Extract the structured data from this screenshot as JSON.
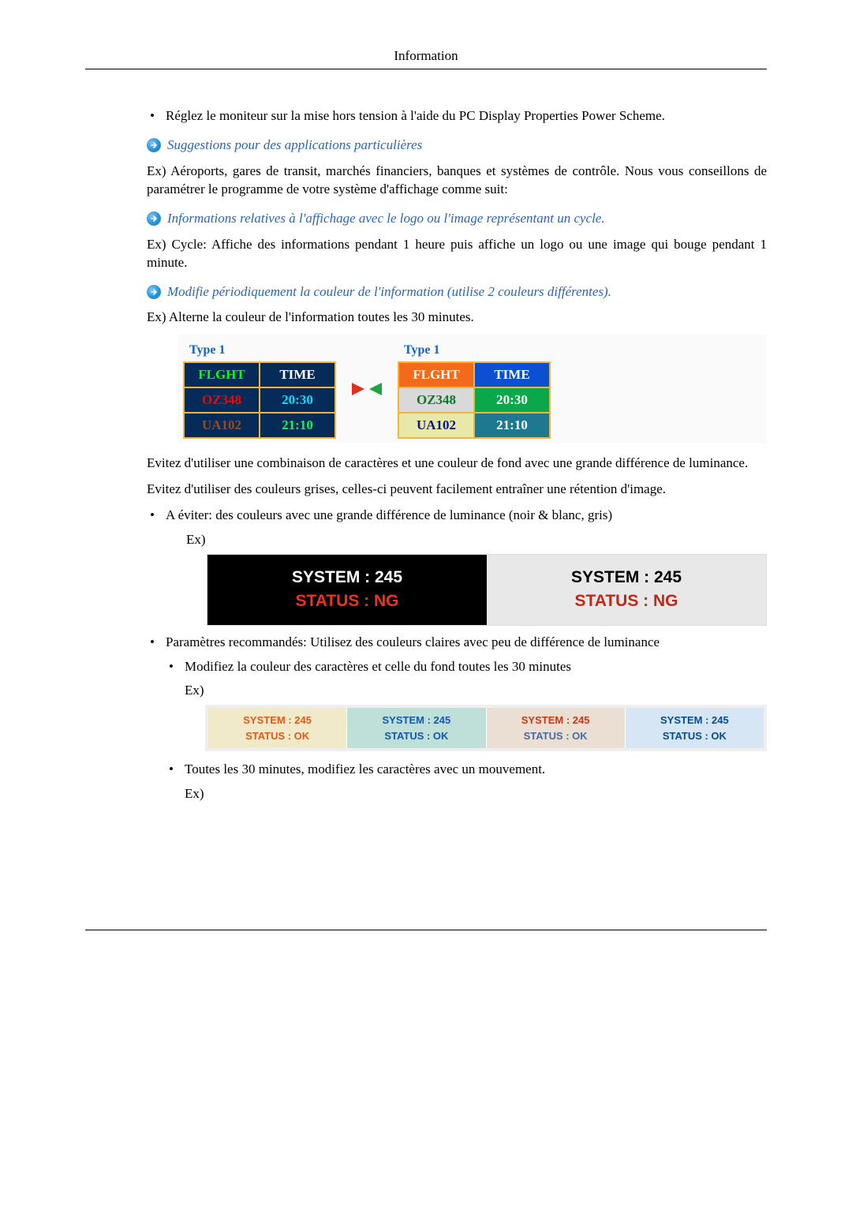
{
  "header": {
    "title": "Information"
  },
  "bullets": {
    "top": "Réglez le moniteur sur la mise hors tension à l'aide du PC Display Properties Power Scheme.",
    "avoid": "A éviter: des couleurs avec une grande différence de luminance (noir & blanc, gris)",
    "recommend": "Paramètres recommandés: Utilisez des couleurs claires avec peu de différence de luminance",
    "sub_changecolor": "Modifiez la couleur des caractères et celle du fond toutes les 30 minutes",
    "sub_move": "Toutes les 30 minutes, modifiez les caractères avec un mouvement."
  },
  "callouts": {
    "c1": "Suggestions pour des applications particulières",
    "c2": "Informations relatives à l'affichage avec le logo ou l'image représentant un cycle.",
    "c3": "Modifie périodiquement la couleur de l'information (utilise 2 couleurs différentes)."
  },
  "paras": {
    "p1": "Ex) Aéroports, gares de transit, marchés financiers, banques et systèmes de contrôle. Nous vous conseillons de paramétrer le programme de votre système d'affichage comme suit:",
    "p2": "Ex) Cycle: Affiche des informations pendant 1 heure puis affiche un logo ou une image qui bouge pendant 1 minute.",
    "p3": "Ex) Alterne la couleur de l'information toutes les 30 minutes.",
    "p4": "Evitez d'utiliser une combinaison de caractères et une couleur de fond avec une grande différence de luminance.",
    "p5": "Evitez d'utiliser des couleurs grises, celles-ci peuvent facilement entraîner une rétention d'image."
  },
  "ex_label": "Ex)",
  "figA": {
    "caption": "Type 1",
    "h1": "FLGHT",
    "h2": "TIME",
    "r1c1": "OZ348",
    "r1c2": "20:30",
    "r2c1": "UA102",
    "r2c2": "21:10"
  },
  "figB": {
    "line1": "SYSTEM : 245",
    "line2": "STATUS : NG"
  },
  "figC": {
    "cells": [
      {
        "l1": "SYSTEM : 245",
        "l2": "STATUS : OK",
        "bg": "#f0eacb",
        "c1": "#e05a1a",
        "c2": "#e05a1a"
      },
      {
        "l1": "SYSTEM : 245",
        "l2": "STATUS : OK",
        "bg": "#bfe0d8",
        "c1": "#1558a8",
        "c2": "#1558a8"
      },
      {
        "l1": "SYSTEM : 245",
        "l2": "STATUS : OK",
        "bg": "#eadfd2",
        "c1": "#c23a1a",
        "c2": "#4a6aa0"
      },
      {
        "l1": "SYSTEM : 245",
        "l2": "STATUS : OK",
        "bg": "#d6e6f4",
        "c1": "#0a4a8a",
        "c2": "#0a4a8a"
      }
    ]
  }
}
